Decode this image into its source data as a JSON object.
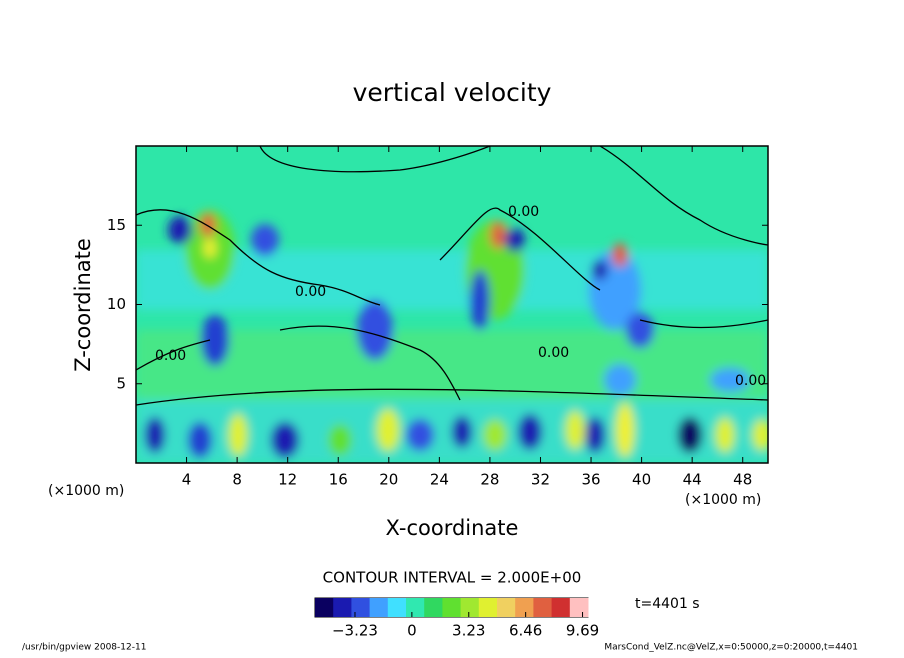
{
  "chart_data": {
    "type": "contour",
    "title": "vertical velocity",
    "xlabel": "X-coordinate",
    "ylabel": "Z-coordinate",
    "x_unit": "(×1000 m)",
    "xlim": [
      0,
      50
    ],
    "xticks": [
      4,
      8,
      12,
      16,
      20,
      24,
      28,
      32,
      36,
      40,
      44,
      48
    ],
    "ylim": [
      0,
      20
    ],
    "yticks": [
      5,
      10,
      15
    ],
    "contour_label": "0.00",
    "contour_interval": "CONTOUR INTERVAL = 2.000E+00",
    "clim": [
      -5.5,
      10
    ],
    "cticks": [
      {
        "value": -3.23,
        "label": "−3.23"
      },
      0,
      3.23,
      6.46,
      9.69
    ],
    "colormap": [
      "#0a0060",
      "#1a1ab0",
      "#3050e0",
      "#40a0ff",
      "#40e0ff",
      "#30e8b0",
      "#30d860",
      "#60e030",
      "#a0e830",
      "#e0f030",
      "#f0d060",
      "#f0a050",
      "#e06040",
      "#d03030",
      "#ffc0c0"
    ],
    "time_label": "t=4401 s",
    "footer_left": "/usr/bin/gpview   2008-12-11",
    "footer_right": "MarsCond_VelZ.nc@VelZ,x=0:50000,z=0:20000,t=4401"
  }
}
